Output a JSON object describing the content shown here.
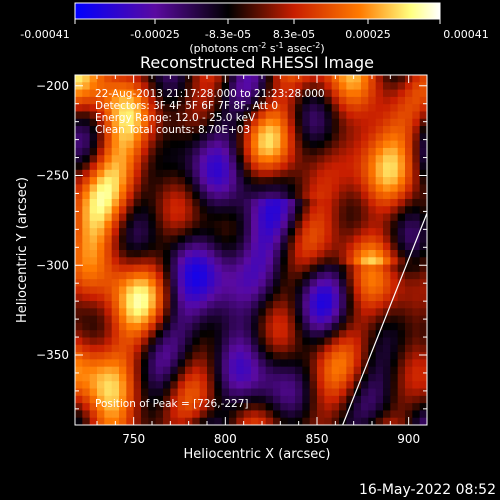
{
  "colorbar": {
    "ticks": [
      "-0.00041",
      "-0.00025",
      "-8.3e-05",
      "8.3e-05",
      "0.00025",
      "0.00041"
    ],
    "unit_parts": [
      "(photons cm",
      "-2",
      " s",
      "-1",
      " asec",
      "-2",
      ")"
    ]
  },
  "plot": {
    "title": "Reconstructed RHESSI Image",
    "xlabel": "Heliocentric X (arcsec)",
    "ylabel": "Heliocentric Y (arcsec)",
    "info_lines": [
      "22-Aug-2013 21:17:28.000 to 21:23:28.000",
      "Detectors: 3F 4F 5F 6F 7F 8F, Att 0",
      "Energy Range: 12.0 - 25.0 keV",
      "Clean    Total counts: 8.70E+03"
    ],
    "peak_label": "Position of Peak = [726,-227]"
  },
  "footer": {
    "timestamp": "16-May-2022 08:52"
  },
  "chart_data": {
    "type": "heatmap",
    "title": "Reconstructed RHESSI Image",
    "xlabel": "Heliocentric X (arcsec)",
    "ylabel": "Heliocentric Y (arcsec)",
    "xlim": [
      718,
      910
    ],
    "ylim": [
      -389,
      -194
    ],
    "x_ticks": [
      750,
      800,
      850,
      900
    ],
    "y_ticks": [
      -200,
      -250,
      -300,
      -350
    ],
    "x_tick_labels": [
      "750",
      "800",
      "850",
      "900"
    ],
    "y_tick_labels": [
      "−200",
      "−250",
      "−300",
      "−350"
    ],
    "color_range": [
      -0.00041,
      0.00041
    ],
    "colormap": [
      "#0000ff",
      "#5a0aa0",
      "#000000",
      "#c81e00",
      "#ff7a00",
      "#ffff80",
      "#ffffff"
    ],
    "peak": [
      726,
      -227
    ],
    "limb_line": [
      [
        864,
        -389
      ],
      [
        910,
        -271
      ]
    ],
    "grid": false
  }
}
